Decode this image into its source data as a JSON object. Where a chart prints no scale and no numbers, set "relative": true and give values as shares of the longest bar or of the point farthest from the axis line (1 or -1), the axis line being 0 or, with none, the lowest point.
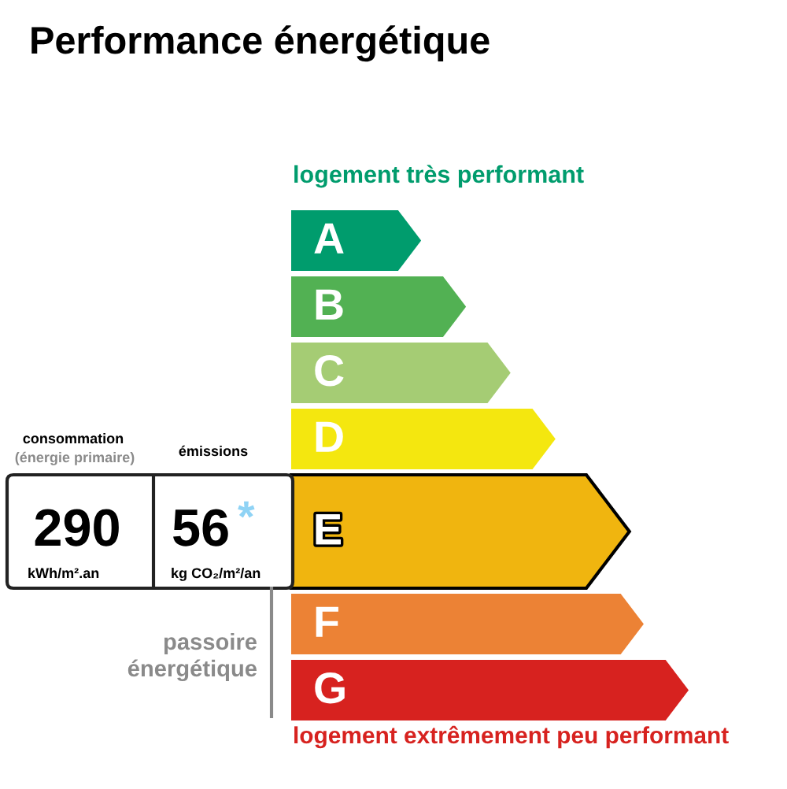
{
  "chart_data": {
    "type": "bar",
    "orientation": "horizontal",
    "relative": true,
    "title": "Performance énergétique",
    "categories": [
      "A",
      "B",
      "C",
      "D",
      "E",
      "F",
      "G"
    ],
    "values": [
      0.327,
      0.44,
      0.552,
      0.665,
      0.851,
      0.887,
      1
    ],
    "colors": [
      "#009c6d",
      "#52b153",
      "#a5cc74",
      "#f4e70f",
      "#f0b50f",
      "#ec8235",
      "#d7221f"
    ],
    "annotations": [
      "logement très performant",
      "logement extrêmement peu performant",
      "consommation",
      "(énergie primaire)",
      "émissions",
      "290",
      "kWh/m².an",
      "56",
      "*",
      "kg CO₂/m²/an",
      "passoire\nénergétique"
    ]
  }
}
